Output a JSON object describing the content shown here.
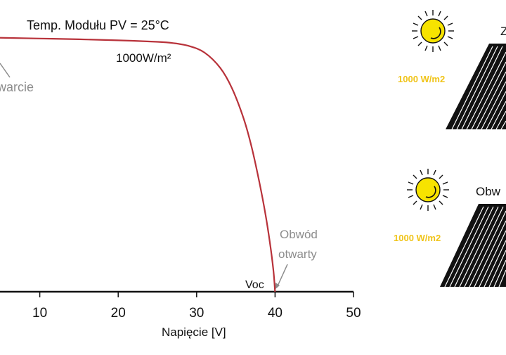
{
  "chart_data": {
    "type": "line",
    "title": "Temp. Modułu PV = 25°C",
    "xlabel": "Napięcie [V]",
    "ylabel": "",
    "xlim": [
      0,
      50
    ],
    "xticks": [
      10,
      20,
      30,
      40,
      50
    ],
    "grid": false,
    "series": [
      {
        "name": "1000W/m²",
        "color": "#b8323a",
        "x": [
          0,
          5,
          10,
          15,
          20,
          25,
          27,
          29,
          31,
          33,
          34.5,
          36,
          37,
          38,
          38.8,
          39.4,
          39.8,
          40
        ],
        "y": [
          1.0,
          0.998,
          0.995,
          0.992,
          0.988,
          0.982,
          0.977,
          0.966,
          0.94,
          0.88,
          0.8,
          0.68,
          0.57,
          0.43,
          0.3,
          0.18,
          0.08,
          0.0
        ]
      }
    ],
    "annotations": {
      "short_circuit_partial": "warcie",
      "open_circuit_line1": "Obwód",
      "open_circuit_line2": "otwarty",
      "voc": "Voc"
    }
  },
  "panels": {
    "top": {
      "irradiance": "1000 W/m2",
      "label_partial": "Z"
    },
    "bottom": {
      "irradiance": "1000 W/m2",
      "label_partial": "Obw"
    }
  },
  "colors": {
    "curve": "#b8323a",
    "annotation_gray": "#8c8c8c",
    "irradiance_text": "#f0c419",
    "sun_fill": "#f7e300",
    "panel_fill": "#111111"
  }
}
